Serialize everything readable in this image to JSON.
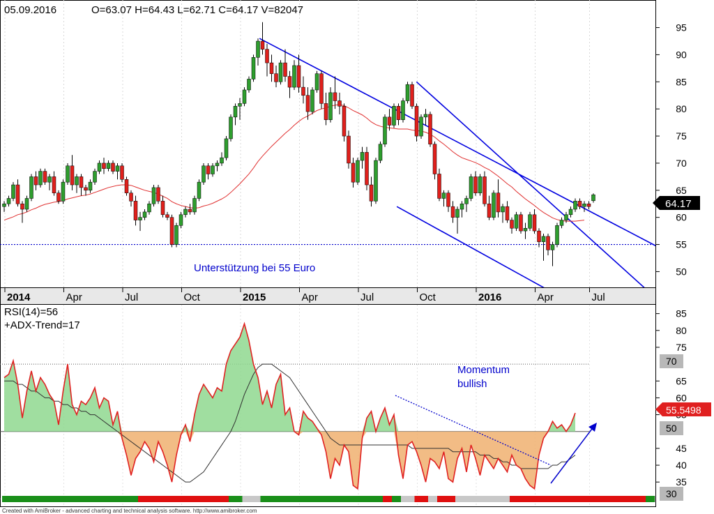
{
  "header": {
    "date": "05.09.2016",
    "ohlcv": "O=63.07  H=64.43  L=62.71  C=64.17  V=82047"
  },
  "annotations": {
    "support_label": "Unterstützung bei 55 Euro",
    "momentum_line1": "Momentum",
    "momentum_line2": "bullish"
  },
  "indicator_labels": {
    "rsi": "RSI(14)=56",
    "adx": "+ADX-Trend=17"
  },
  "footer": "Created with AmiBroker - advanced charting and technical analysis software. http://www.amibroker.com",
  "colors": {
    "up": "#2e9e2e",
    "down": "#e0201c",
    "ma": "#e03030",
    "channel": "#0000e0",
    "rsi_line": "#e02020",
    "rsi_fill_above": "#8fd88f",
    "rsi_fill_below": "#f0b070",
    "adx_line": "#303030",
    "price_badge": "#000000",
    "badge_bg": "#b8b8b8"
  },
  "chart_data": [
    {
      "type": "candlestick",
      "ylim": [
        48,
        97
      ],
      "y_ticks": [
        50,
        55,
        60,
        65,
        70,
        75,
        80,
        85,
        90,
        95
      ],
      "x_ticks": [
        "2014",
        "Apr",
        "Jul",
        "Oct",
        "2015",
        "Apr",
        "Jul",
        "Oct",
        "2016",
        "Apr",
        "Jul"
      ],
      "last_price": "64.17",
      "support_level": 55,
      "candles": [
        [
          62,
          63,
          61,
          62.5
        ],
        [
          62.5,
          64,
          62,
          63.5
        ],
        [
          63.5,
          66.5,
          63,
          66
        ],
        [
          66,
          67,
          62,
          62.5
        ],
        [
          62.5,
          63,
          59,
          61.5
        ],
        [
          61.5,
          64,
          61,
          63.5
        ],
        [
          63.5,
          68,
          63,
          67.5
        ],
        [
          67.5,
          68.5,
          65,
          66
        ],
        [
          66,
          69,
          65.5,
          68.5
        ],
        [
          68.5,
          69,
          66,
          66.5
        ],
        [
          66.5,
          68,
          65,
          67.5
        ],
        [
          67.5,
          68.5,
          64,
          64.5
        ],
        [
          64.5,
          65,
          62.5,
          63
        ],
        [
          63,
          67,
          62.5,
          66.5
        ],
        [
          66.5,
          70,
          66,
          69.5
        ],
        [
          69.5,
          71.5,
          65,
          66
        ],
        [
          66,
          68,
          64.5,
          67.5
        ],
        [
          67.5,
          68,
          64,
          65.5
        ],
        [
          65.5,
          66,
          64,
          65
        ],
        [
          65,
          67,
          64.5,
          66.5
        ],
        [
          66.5,
          69,
          66,
          68.5
        ],
        [
          68.5,
          70.5,
          68,
          70
        ],
        [
          70,
          71,
          68,
          69
        ],
        [
          69,
          70.5,
          68.5,
          70
        ],
        [
          70,
          70.5,
          68,
          68.5
        ],
        [
          68.5,
          70,
          67,
          69.5
        ],
        [
          69.5,
          70,
          66.5,
          67
        ],
        [
          67,
          67.5,
          64,
          64.5
        ],
        [
          64.5,
          65,
          62,
          63
        ],
        [
          63,
          64,
          58.5,
          59.5
        ],
        [
          59.5,
          61,
          57.5,
          60
        ],
        [
          60,
          61.5,
          59.5,
          61
        ],
        [
          61,
          63,
          60.5,
          62.5
        ],
        [
          62.5,
          66,
          62,
          65.5
        ],
        [
          65.5,
          66,
          62.5,
          63
        ],
        [
          63,
          64,
          60,
          60.5
        ],
        [
          60.5,
          61,
          59.5,
          60
        ],
        [
          60,
          60.5,
          54.5,
          55
        ],
        [
          55,
          59,
          54.5,
          58.5
        ],
        [
          58.5,
          61,
          58,
          60.5
        ],
        [
          60.5,
          62,
          60,
          61.5
        ],
        [
          61.5,
          62.5,
          60.5,
          61
        ],
        [
          61,
          64,
          60.5,
          63.5
        ],
        [
          63.5,
          67,
          63,
          66.5
        ],
        [
          66.5,
          70,
          66,
          69.5
        ],
        [
          69.5,
          70,
          67,
          68
        ],
        [
          68,
          70,
          67.5,
          69.5
        ],
        [
          69.5,
          70.5,
          68.5,
          70
        ],
        [
          70,
          72,
          69.5,
          71
        ],
        [
          71,
          75,
          70.5,
          74.5
        ],
        [
          74.5,
          79,
          74,
          78.5
        ],
        [
          78.5,
          81,
          77,
          80.5
        ],
        [
          80.5,
          82,
          78,
          81
        ],
        [
          81,
          84,
          80.5,
          83.5
        ],
        [
          83.5,
          86,
          83,
          85.5
        ],
        [
          85.5,
          90,
          85,
          89.5
        ],
        [
          89.5,
          93,
          88,
          92.5
        ],
        [
          92.5,
          96,
          90,
          91
        ],
        [
          91,
          92,
          86,
          88.5
        ],
        [
          88.5,
          90,
          85,
          86.5
        ],
        [
          86.5,
          88,
          84,
          85
        ],
        [
          85,
          89,
          84.5,
          88.5
        ],
        [
          88.5,
          91,
          85,
          86
        ],
        [
          86,
          87,
          82,
          84
        ],
        [
          84,
          89,
          83.5,
          88
        ],
        [
          88,
          90,
          83,
          84
        ],
        [
          84,
          86,
          81,
          82.5
        ],
        [
          82.5,
          84,
          78,
          79.5
        ],
        [
          79.5,
          84,
          79,
          83.5
        ],
        [
          83.5,
          87,
          83,
          86.5
        ],
        [
          86.5,
          87,
          80,
          81
        ],
        [
          81,
          83,
          77,
          78
        ],
        [
          78,
          84,
          77.5,
          83
        ],
        [
          83,
          86,
          80,
          81.5
        ],
        [
          81.5,
          83,
          79,
          80.5
        ],
        [
          80.5,
          81,
          74,
          75
        ],
        [
          75,
          76,
          69,
          70
        ],
        [
          70,
          71,
          65.5,
          66.5
        ],
        [
          66.5,
          71,
          66,
          70.5
        ],
        [
          70.5,
          73,
          69,
          72
        ],
        [
          72,
          73,
          65,
          66
        ],
        [
          66,
          67.5,
          62,
          63
        ],
        [
          63,
          71,
          62.5,
          70.5
        ],
        [
          70.5,
          74,
          70,
          73.5
        ],
        [
          73.5,
          79,
          73,
          78.5
        ],
        [
          78.5,
          80,
          76,
          77
        ],
        [
          77,
          81,
          76.5,
          80.5
        ],
        [
          80.5,
          81,
          77,
          78
        ],
        [
          78,
          82,
          77.5,
          81.5
        ],
        [
          81.5,
          85,
          81,
          84.5
        ],
        [
          84.5,
          85,
          80,
          80.5
        ],
        [
          80.5,
          81,
          74,
          75
        ],
        [
          75,
          79,
          74.5,
          78.5
        ],
        [
          78.5,
          80,
          77,
          79
        ],
        [
          79,
          79.5,
          73,
          73.5
        ],
        [
          73.5,
          74,
          67,
          68
        ],
        [
          68,
          69,
          63,
          63.5
        ],
        [
          63.5,
          65,
          62,
          64.5
        ],
        [
          64.5,
          65,
          61,
          62
        ],
        [
          62,
          63,
          59,
          60
        ],
        [
          60,
          62,
          57,
          61.5
        ],
        [
          61.5,
          63,
          60,
          62.5
        ],
        [
          62.5,
          64,
          61,
          63.5
        ],
        [
          63.5,
          68,
          63,
          67.5
        ],
        [
          67.5,
          68.5,
          64,
          64.5
        ],
        [
          64.5,
          68,
          64,
          67.5
        ],
        [
          67.5,
          68.5,
          62,
          62.5
        ],
        [
          62.5,
          64,
          59.5,
          60
        ],
        [
          60,
          65,
          59.5,
          64.5
        ],
        [
          64.5,
          67,
          60,
          61
        ],
        [
          61,
          62.5,
          59,
          62
        ],
        [
          62,
          63,
          59,
          59.5
        ],
        [
          59.5,
          60,
          57,
          58
        ],
        [
          58,
          61,
          57.5,
          60.5
        ],
        [
          60.5,
          61,
          57,
          57.5
        ],
        [
          57.5,
          59,
          56,
          58
        ],
        [
          58,
          61,
          57.5,
          60.5
        ],
        [
          60.5,
          61.5,
          57,
          57.5
        ],
        [
          57.5,
          58,
          54.5,
          55.5
        ],
        [
          55.5,
          57,
          52,
          56.5
        ],
        [
          56.5,
          57,
          53,
          54
        ],
        [
          54,
          55.5,
          51,
          55
        ],
        [
          55,
          59,
          54.5,
          58.5
        ],
        [
          58.5,
          60,
          58,
          59.5
        ],
        [
          59.5,
          61,
          59,
          60.5
        ],
        [
          60.5,
          62,
          60,
          61.5
        ],
        [
          61.5,
          63.5,
          61,
          63
        ],
        [
          63,
          63.5,
          61.5,
          62
        ],
        [
          62,
          63,
          61,
          62.5
        ],
        [
          62.5,
          63,
          61.5,
          62
        ],
        [
          63.07,
          64.43,
          62.71,
          64.17
        ]
      ],
      "ma_values": [
        59.5,
        59.8,
        60.1,
        60.5,
        60.7,
        61,
        61.4,
        61.7,
        62.1,
        62.4,
        62.6,
        62.8,
        62.9,
        63.1,
        63.4,
        63.6,
        63.8,
        64,
        64.1,
        64.3,
        64.6,
        64.9,
        65.2,
        65.5,
        65.7,
        65.9,
        66,
        66,
        65.9,
        65.6,
        65.3,
        65,
        64.8,
        64.6,
        64.3,
        63.9,
        63.5,
        62.9,
        62.5,
        62.2,
        62,
        61.8,
        61.7,
        61.8,
        62.1,
        62.3,
        62.6,
        63,
        63.4,
        63.9,
        64.6,
        65.4,
        66.2,
        67.1,
        68,
        69.1,
        70.3,
        71.3,
        72.2,
        73.1,
        73.9,
        74.7,
        75.5,
        76.2,
        77,
        77.7,
        78.3,
        78.7,
        79.2,
        79.7,
        80,
        80.2,
        80.5,
        80.7,
        80.8,
        80.6,
        80.2,
        79.7,
        79.3,
        78.9,
        78.3,
        77.6,
        77.1,
        76.8,
        76.6,
        76.5,
        76.4,
        76.3,
        76.3,
        76.3,
        76.1,
        76,
        75.9,
        75.7,
        75.3,
        74.8,
        74.1,
        73.5,
        72.8,
        72.1,
        71.5,
        71,
        70.7,
        70.4,
        70.1,
        69.7,
        69.2,
        68.8,
        68.2,
        67.6,
        66.9,
        66.2,
        65.6,
        64.8,
        64.1,
        63.4,
        62.8,
        62.2,
        61.5,
        60.9,
        60.4,
        59.9,
        59.6,
        59.4,
        59.3,
        59.3,
        59.3,
        59.4,
        59.5
      ],
      "channel_lines": [
        {
          "from": [
            "2015-02",
            93
          ],
          "to": [
            "2016-09",
            57
          ]
        },
        {
          "from": [
            "2015-10",
            85
          ],
          "to": [
            "2016-09",
            49
          ]
        },
        {
          "from": [
            "2015-09",
            62
          ],
          "to": [
            "2016-04",
            48
          ]
        }
      ]
    },
    {
      "type": "line",
      "name": "RSI(14)",
      "ylim": [
        28,
        87
      ],
      "y_ticks": [
        30,
        35,
        40,
        45,
        50,
        55,
        60,
        65,
        70,
        75,
        80,
        85
      ],
      "levels": [
        30,
        50,
        70
      ],
      "level_labels": [
        "30",
        "50",
        "70"
      ],
      "last_value": "55.5498",
      "rsi_values": [
        66,
        67,
        71,
        64,
        54,
        62,
        68,
        62,
        66,
        64,
        61,
        59,
        52,
        62,
        70,
        58,
        55,
        59,
        58,
        60,
        63,
        57,
        60,
        59,
        52,
        56,
        48,
        43,
        37,
        42,
        44,
        47,
        45,
        41,
        47,
        44,
        40,
        35,
        43,
        49,
        52,
        47,
        55,
        61,
        64,
        62,
        60,
        63,
        62,
        70,
        74,
        76,
        78,
        82,
        77,
        70,
        66,
        58,
        62,
        57,
        64,
        67,
        55,
        57,
        50,
        49,
        56,
        54,
        53,
        51,
        49,
        44,
        36,
        42,
        40,
        46,
        44,
        34,
        33,
        48,
        54,
        56,
        50,
        54,
        57,
        52,
        55,
        43,
        36,
        46,
        47,
        44,
        40,
        35,
        42,
        41,
        39,
        44,
        36,
        35,
        42,
        45,
        38,
        46,
        42,
        37,
        43,
        41,
        39,
        42,
        40,
        38,
        43,
        40,
        39,
        36,
        34,
        33,
        43,
        48,
        50,
        53,
        51,
        52,
        50,
        52,
        55.5
      ],
      "adx_values": [
        65,
        65,
        65,
        64,
        64,
        63,
        62,
        62,
        61,
        60,
        60,
        59,
        59,
        58,
        58,
        57,
        57,
        56,
        56,
        55,
        55,
        54,
        53,
        52,
        51,
        50,
        49,
        48,
        47,
        46,
        45,
        44,
        43,
        42,
        41,
        40,
        39,
        38,
        37,
        36,
        35,
        35,
        36,
        37,
        38,
        40,
        42,
        44,
        46,
        48,
        50,
        53,
        57,
        61,
        64,
        67,
        69,
        70,
        70,
        70,
        69,
        68,
        67,
        66,
        64,
        62,
        60,
        58,
        56,
        54,
        52,
        50,
        48,
        47,
        46,
        46,
        46,
        46,
        46,
        46,
        46,
        46,
        46,
        46,
        46,
        46,
        46,
        46,
        46,
        46,
        45,
        45,
        45,
        45,
        45,
        45,
        45,
        45,
        45,
        44,
        44,
        44,
        44,
        44,
        44,
        43,
        43,
        43,
        42,
        42,
        41,
        41,
        40,
        40,
        39,
        39,
        39,
        39,
        39,
        39,
        39,
        40,
        40,
        41,
        41,
        42,
        43
      ],
      "trend_bar": [
        {
          "color": "green",
          "count": 30
        },
        {
          "color": "red",
          "count": 20
        },
        {
          "color": "green",
          "count": 3
        },
        {
          "color": "grey",
          "count": 4
        },
        {
          "color": "green",
          "count": 27
        },
        {
          "color": "red",
          "count": 2
        },
        {
          "color": "green",
          "count": 2
        },
        {
          "color": "grey",
          "count": 3
        },
        {
          "color": "red",
          "count": 3
        },
        {
          "color": "grey",
          "count": 2
        },
        {
          "color": "red",
          "count": 4
        },
        {
          "color": "grey",
          "count": 12
        },
        {
          "color": "red",
          "count": 30
        },
        {
          "color": "green",
          "count": 2
        },
        {
          "color": "grey",
          "count": 5
        }
      ]
    }
  ]
}
